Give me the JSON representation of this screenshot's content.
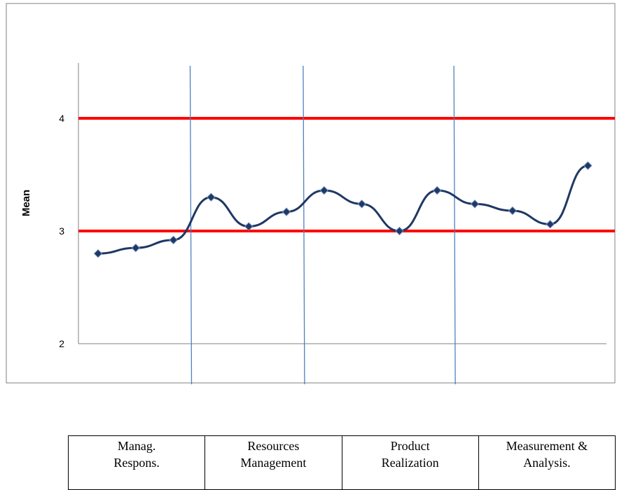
{
  "chart_data": {
    "type": "line",
    "ylabel": "Mean",
    "xlabel": "",
    "ylim": [
      2,
      4.5
    ],
    "yticks": [
      2,
      3,
      4
    ],
    "grid": false,
    "x": [
      1,
      2,
      3,
      4,
      5,
      6,
      7,
      8,
      9,
      10,
      11,
      12,
      13,
      14
    ],
    "series": [
      {
        "values": [
          2.8,
          2.85,
          2.92,
          3.3,
          3.04,
          3.17,
          3.36,
          3.24,
          3.0,
          3.36,
          3.24,
          3.18,
          3.06,
          3.58
        ],
        "color": "#1f3864"
      }
    ],
    "reference_lines": [
      {
        "y": 4,
        "color": "#ff0000"
      },
      {
        "y": 3,
        "color": "#ff0000"
      }
    ],
    "section_dividers_after_point": [
      3,
      6,
      10
    ],
    "divider_color": "#4f81bd"
  },
  "sections": [
    {
      "lines": [
        "Manag.",
        "Respons."
      ]
    },
    {
      "lines": [
        "Resources",
        "Management"
      ]
    },
    {
      "lines": [
        "Product",
        "Realization"
      ]
    },
    {
      "lines": [
        "Measurement &",
        "Analysis."
      ]
    }
  ]
}
